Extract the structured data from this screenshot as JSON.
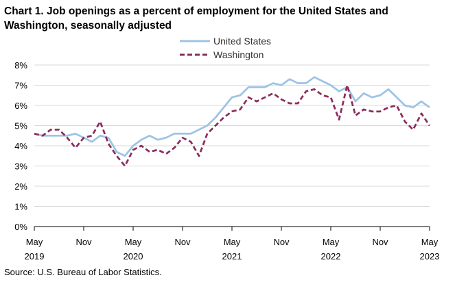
{
  "chart_data": {
    "type": "line",
    "title": "Chart 1. Job openings as a percent of employment for the United States and Washington, seasonally adjusted",
    "xlabel": "",
    "ylabel": "",
    "ylim": [
      0,
      8
    ],
    "yticks": [
      "0%",
      "1%",
      "2%",
      "3%",
      "4%",
      "5%",
      "6%",
      "7%",
      "8%"
    ],
    "xticks": [
      {
        "month": "May",
        "year": "2019",
        "index": 0
      },
      {
        "month": "Nov",
        "year": "",
        "index": 6
      },
      {
        "month": "May",
        "year": "2020",
        "index": 12
      },
      {
        "month": "Nov",
        "year": "",
        "index": 18
      },
      {
        "month": "May",
        "year": "2021",
        "index": 24
      },
      {
        "month": "Nov",
        "year": "",
        "index": 30
      },
      {
        "month": "May",
        "year": "2022",
        "index": 36
      },
      {
        "month": "Nov",
        "year": "",
        "index": 42
      },
      {
        "month": "May",
        "year": "2023",
        "index": 48
      }
    ],
    "x_start": "May 2019",
    "x_end": "May 2023",
    "grid": true,
    "legend_position": "top-center",
    "series": [
      {
        "name": "United States",
        "color": "#9dc3e6",
        "style": "solid",
        "values": [
          4.6,
          4.5,
          4.5,
          4.5,
          4.5,
          4.6,
          4.4,
          4.2,
          4.5,
          4.4,
          3.7,
          3.5,
          4.0,
          4.3,
          4.5,
          4.3,
          4.4,
          4.6,
          4.6,
          4.6,
          4.8,
          5.0,
          5.4,
          5.9,
          6.4,
          6.5,
          6.9,
          6.9,
          6.9,
          7.1,
          7.0,
          7.3,
          7.1,
          7.1,
          7.4,
          7.2,
          7.0,
          6.7,
          6.9,
          6.2,
          6.6,
          6.4,
          6.5,
          6.8,
          6.4,
          6.0,
          5.9,
          6.2,
          5.9
        ]
      },
      {
        "name": "Washington",
        "color": "#8b2d5e",
        "style": "dashed",
        "values": [
          4.6,
          4.5,
          4.8,
          4.8,
          4.4,
          3.9,
          4.4,
          4.5,
          5.2,
          4.1,
          3.5,
          3.0,
          3.8,
          4.0,
          3.7,
          3.8,
          3.6,
          3.9,
          4.4,
          4.2,
          3.5,
          4.6,
          5.0,
          5.4,
          5.7,
          5.8,
          6.4,
          6.2,
          6.4,
          6.6,
          6.3,
          6.1,
          6.1,
          6.7,
          6.8,
          6.5,
          6.4,
          5.3,
          7.0,
          5.5,
          5.8,
          5.7,
          5.7,
          5.9,
          6.0,
          5.2,
          4.8,
          5.6,
          5.0
        ]
      }
    ]
  },
  "source": "Source: U.S. Bureau of Labor Statistics."
}
